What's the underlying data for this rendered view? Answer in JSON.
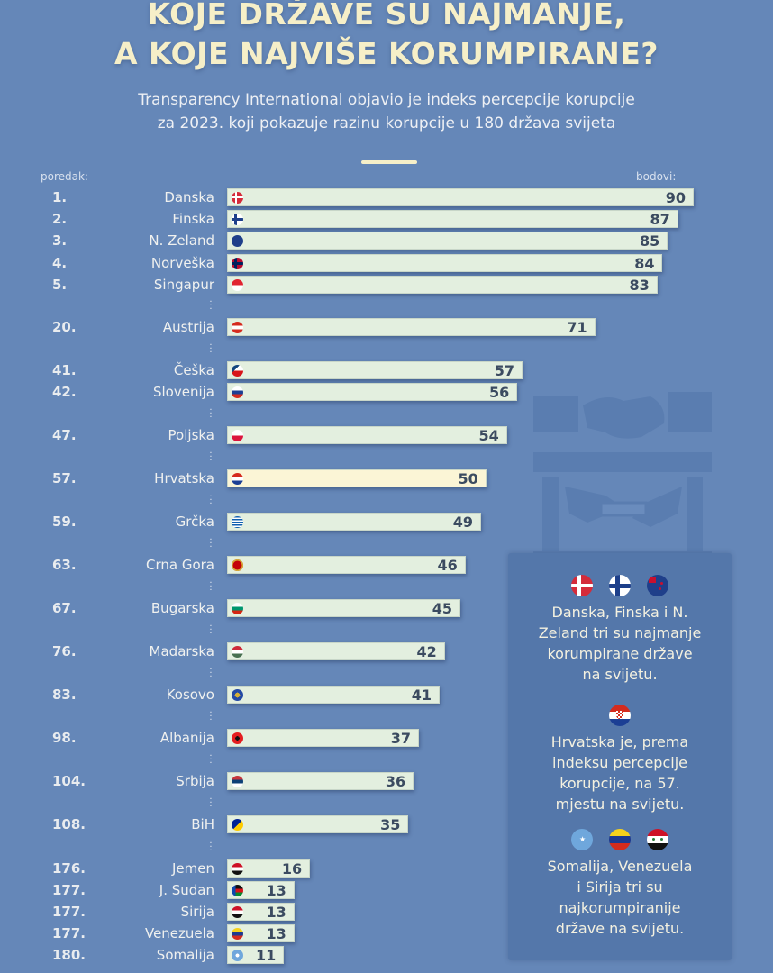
{
  "header": {
    "title_lines": [
      "KOJE DRŽAVE SU NAJMANJE,",
      "A KOJE NAJVIŠE KORUMPIRANE?"
    ],
    "subtitle_lines": [
      "Transparency International objavio je indeks percepcije korupcije",
      "za 2023. koji pokazuje razinu korupcije u 180 država svijeta"
    ],
    "rank_header": "poredak:",
    "score_header": "bodovi:"
  },
  "colors": {
    "background": "#6587b8",
    "bar": "#e3efdf",
    "bar_highlight": "#fbf5d6",
    "title": "#f6efc8",
    "info_box": "#5477aa"
  },
  "chart_data": {
    "type": "bar",
    "orientation": "horizontal",
    "title": "Koje države su najmanje, a koje najviše korumpirane?",
    "xlabel": "bodovi",
    "ylabel": "poredak",
    "xlim": [
      0,
      90
    ],
    "highlight": "Hrvatska",
    "rows": [
      {
        "rank": "1.",
        "country": "Danska",
        "value": 90,
        "flag": "denmark-flag-icon",
        "gap_before": false
      },
      {
        "rank": "2.",
        "country": "Finska",
        "value": 87,
        "flag": "finland-flag-icon",
        "gap_before": false
      },
      {
        "rank": "3.",
        "country": "N. Zeland",
        "value": 85,
        "flag": "new-zealand-flag-icon",
        "gap_before": false
      },
      {
        "rank": "4.",
        "country": "Norveška",
        "value": 84,
        "flag": "norway-flag-icon",
        "gap_before": false
      },
      {
        "rank": "5.",
        "country": "Singapur",
        "value": 83,
        "flag": "singapore-flag-icon",
        "gap_before": false
      },
      {
        "rank": "20.",
        "country": "Austrija",
        "value": 71,
        "flag": "austria-flag-icon",
        "gap_before": true
      },
      {
        "rank": "41.",
        "country": "Češka",
        "value": 57,
        "flag": "czechia-flag-icon",
        "gap_before": true
      },
      {
        "rank": "42.",
        "country": "Slovenija",
        "value": 56,
        "flag": "slovenia-flag-icon",
        "gap_before": false
      },
      {
        "rank": "47.",
        "country": "Poljska",
        "value": 54,
        "flag": "poland-flag-icon",
        "gap_before": true
      },
      {
        "rank": "57.",
        "country": "Hrvatska",
        "value": 50,
        "flag": "croatia-flag-icon",
        "gap_before": true
      },
      {
        "rank": "59.",
        "country": "Grčka",
        "value": 49,
        "flag": "greece-flag-icon",
        "gap_before": true
      },
      {
        "rank": "63.",
        "country": "Crna Gora",
        "value": 46,
        "flag": "montenegro-flag-icon",
        "gap_before": true
      },
      {
        "rank": "67.",
        "country": "Bugarska",
        "value": 45,
        "flag": "bulgaria-flag-icon",
        "gap_before": true
      },
      {
        "rank": "76.",
        "country": "Madarska",
        "value": 42,
        "flag": "hungary-flag-icon",
        "gap_before": true
      },
      {
        "rank": "83.",
        "country": "Kosovo",
        "value": 41,
        "flag": "kosovo-flag-icon",
        "gap_before": true
      },
      {
        "rank": "98.",
        "country": "Albanija",
        "value": 37,
        "flag": "albania-flag-icon",
        "gap_before": true
      },
      {
        "rank": "104.",
        "country": "Srbija",
        "value": 36,
        "flag": "serbia-flag-icon",
        "gap_before": true
      },
      {
        "rank": "108.",
        "country": "BiH",
        "value": 35,
        "flag": "bosnia-flag-icon",
        "gap_before": true
      },
      {
        "rank": "176.",
        "country": "Jemen",
        "value": 16,
        "flag": "yemen-flag-icon",
        "gap_before": true
      },
      {
        "rank": "177.",
        "country": "J. Sudan",
        "value": 13,
        "flag": "south-sudan-flag-icon",
        "gap_before": false
      },
      {
        "rank": "177.",
        "country": "Sirija",
        "value": 13,
        "flag": "syria-flag-icon",
        "gap_before": false
      },
      {
        "rank": "177.",
        "country": "Venezuela",
        "value": 13,
        "flag": "venezuela-flag-icon",
        "gap_before": false
      },
      {
        "rank": "180.",
        "country": "Somalija",
        "value": 11,
        "flag": "somalia-flag-icon",
        "gap_before": false
      }
    ]
  },
  "info_box": {
    "blocks": [
      {
        "flags": [
          "denmark-flag-icon",
          "finland-flag-icon",
          "new-zealand-flag-icon"
        ],
        "lines": [
          "Danska, Finska i N.",
          "Zeland tri su najmanje",
          "korumpirane države",
          "na svijetu."
        ]
      },
      {
        "flags": [
          "croatia-flag-icon"
        ],
        "lines": [
          "Hrvatska je, prema",
          "indeksu percepcije",
          "korupcije, na 57.",
          "mjestu na svijetu."
        ]
      },
      {
        "flags": [
          "somalia-flag-icon",
          "venezuela-flag-icon",
          "syria-flag-icon"
        ],
        "lines": [
          "Somalija, Venezuela",
          "i Sirija tri su",
          "najkorumpiranije",
          "države na svijetu."
        ]
      }
    ]
  },
  "illustration": "handshake-bribe-icon"
}
